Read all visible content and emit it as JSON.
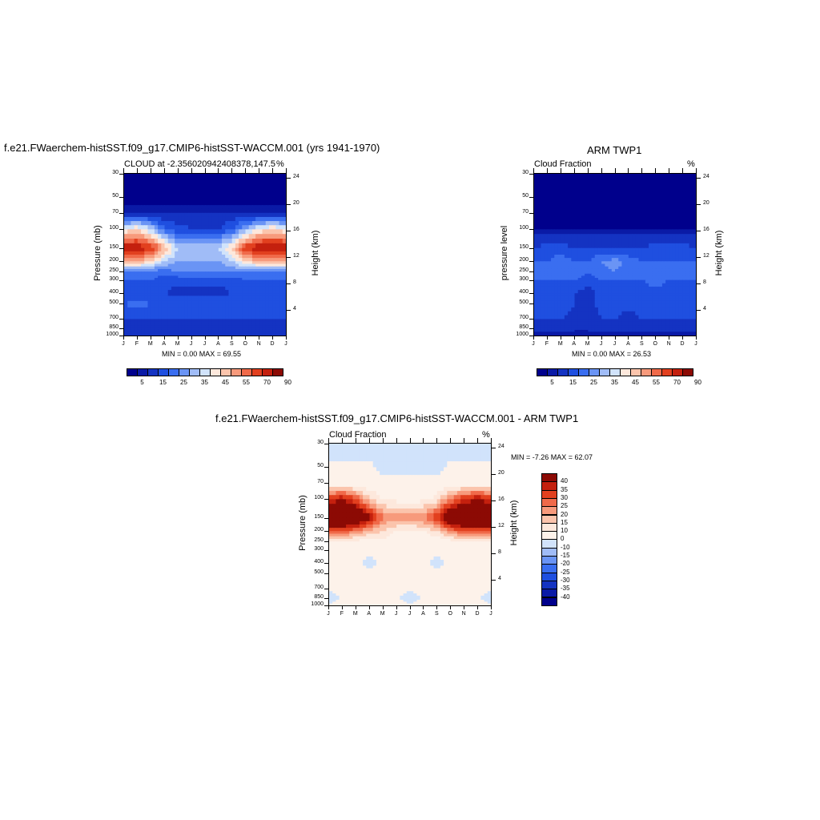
{
  "panel1": {
    "title": "f.e21.FWaerchem-histSST.f09_g17.CMIP6-histSST-WACCM.001 (yrs 1941-1970)",
    "left_label": "CLOUD at -2.356020942408378,147.5",
    "right_unit": "%",
    "ylabel": "Pressure (mb)",
    "y2label": "Height (km)",
    "minmax": "MIN =   0.00 MAX =  69.55"
  },
  "panel2": {
    "title": "ARM TWP1",
    "left_label": "Cloud Fraction",
    "right_unit": "%",
    "ylabel": "pressure level",
    "y2label": "Height (km)",
    "minmax": "MIN =   0.00 MAX =  26.53"
  },
  "panel3": {
    "title": "f.e21.FWaerchem-histSST.f09_g17.CMIP6-histSST-WACCM.001 - ARM TWP1",
    "left_label": "Cloud Fraction",
    "right_unit": "%",
    "ylabel": "Pressure (mb)",
    "y2label": "Height (km)",
    "minmax": "MIN =  -7.26 MAX =  62.07"
  },
  "axes": {
    "pressure_ticks": [
      "30",
      "50",
      "70",
      "100",
      "150",
      "200",
      "250",
      "300",
      "400",
      "500",
      "700",
      "850",
      "1000"
    ],
    "height_ticks": [
      "24",
      "20",
      "16",
      "12",
      "8",
      "4"
    ],
    "month_ticks": [
      "J",
      "F",
      "M",
      "A",
      "M",
      "J",
      "J",
      "A",
      "S",
      "O",
      "N",
      "D",
      "J"
    ]
  },
  "colorbar_top": {
    "labels": [
      "5",
      "15",
      "25",
      "35",
      "45",
      "55",
      "70",
      "90"
    ],
    "colors": [
      "#00008c",
      "#0a1aa6",
      "#1433c2",
      "#1f4fe0",
      "#3a6ef0",
      "#6a94f5",
      "#a0bcf7",
      "#d1e3fb",
      "#fde8dc",
      "#fbc4ac",
      "#f79a7c",
      "#f06a4a",
      "#e2401f",
      "#c4200e",
      "#8c0a04"
    ]
  },
  "colorbar_diff": {
    "labels": [
      "40",
      "35",
      "30",
      "25",
      "20",
      "15",
      "10",
      "0",
      "-10",
      "-15",
      "-20",
      "-25",
      "-30",
      "-35",
      "-40"
    ],
    "colors": [
      "#8c0a04",
      "#c4200e",
      "#e2401f",
      "#f06a4a",
      "#f79a7c",
      "#fbc4ac",
      "#fde8dc",
      "#fdf2ea",
      "#d1e3fb",
      "#a0bcf7",
      "#6a94f5",
      "#3a6ef0",
      "#1f4fe0",
      "#1433c2",
      "#0a1aa6",
      "#00008c"
    ]
  },
  "chart_data": [
    {
      "type": "heatmap",
      "title": "f.e21.FWaerchem-histSST.f09_g17.CMIP6-histSST-WACCM.001 (yrs 1941-1970)",
      "xlabel": "",
      "ylabel": "Pressure (mb)",
      "x": [
        "J",
        "F",
        "M",
        "A",
        "M",
        "J",
        "J",
        "A",
        "S",
        "O",
        "N",
        "D",
        "J"
      ],
      "y_pressure": [
        30,
        50,
        70,
        100,
        150,
        200,
        250,
        300,
        400,
        500,
        700,
        850,
        1000
      ],
      "values_pct": [
        [
          0,
          0,
          0,
          0,
          0,
          0,
          0,
          0,
          0,
          0,
          0,
          0,
          0
        ],
        [
          0,
          0,
          0,
          0,
          0,
          0,
          0,
          0,
          0,
          0,
          0,
          0,
          0
        ],
        [
          5,
          5,
          5,
          5,
          5,
          5,
          5,
          5,
          5,
          5,
          5,
          5,
          5
        ],
        [
          35,
          40,
          30,
          15,
          12,
          10,
          10,
          10,
          15,
          25,
          35,
          40,
          35
        ],
        [
          65,
          65,
          60,
          45,
          30,
          28,
          28,
          30,
          40,
          60,
          65,
          68,
          65
        ],
        [
          45,
          45,
          40,
          30,
          25,
          25,
          25,
          25,
          30,
          40,
          45,
          45,
          45
        ],
        [
          20,
          20,
          18,
          18,
          20,
          20,
          20,
          20,
          20,
          20,
          20,
          20,
          20
        ],
        [
          15,
          15,
          15,
          12,
          12,
          12,
          12,
          12,
          12,
          15,
          15,
          15,
          15
        ],
        [
          10,
          10,
          12,
          10,
          8,
          8,
          8,
          8,
          10,
          10,
          10,
          10,
          10
        ],
        [
          15,
          18,
          15,
          15,
          15,
          15,
          15,
          15,
          15,
          15,
          15,
          15,
          15
        ],
        [
          10,
          10,
          10,
          10,
          10,
          10,
          10,
          10,
          10,
          10,
          10,
          10,
          10
        ],
        [
          8,
          8,
          8,
          8,
          8,
          8,
          8,
          8,
          8,
          8,
          8,
          8,
          8
        ],
        [
          5,
          5,
          5,
          5,
          5,
          5,
          5,
          5,
          5,
          5,
          5,
          5,
          5
        ]
      ],
      "min": 0.0,
      "max": 69.55
    },
    {
      "type": "heatmap",
      "title": "ARM TWP1",
      "xlabel": "",
      "ylabel": "pressure level",
      "x": [
        "J",
        "F",
        "M",
        "A",
        "M",
        "J",
        "J",
        "A",
        "S",
        "O",
        "N",
        "D",
        "J"
      ],
      "y_pressure": [
        30,
        50,
        70,
        100,
        150,
        200,
        250,
        300,
        400,
        500,
        700,
        850,
        1000
      ],
      "values_pct": [
        [
          0,
          0,
          0,
          0,
          0,
          0,
          0,
          0,
          0,
          0,
          0,
          0,
          0
        ],
        [
          0,
          0,
          0,
          0,
          0,
          0,
          0,
          0,
          0,
          0,
          0,
          0,
          0
        ],
        [
          0,
          0,
          0,
          0,
          0,
          0,
          0,
          0,
          0,
          0,
          0,
          0,
          0
        ],
        [
          2,
          2,
          2,
          2,
          2,
          2,
          2,
          2,
          2,
          2,
          2,
          2,
          2
        ],
        [
          10,
          12,
          12,
          10,
          10,
          10,
          10,
          10,
          10,
          12,
          12,
          12,
          10
        ],
        [
          15,
          15,
          18,
          15,
          15,
          20,
          22,
          18,
          15,
          15,
          15,
          15,
          15
        ],
        [
          18,
          18,
          18,
          18,
          15,
          18,
          20,
          18,
          18,
          20,
          18,
          18,
          18
        ],
        [
          15,
          15,
          15,
          15,
          12,
          15,
          15,
          15,
          15,
          18,
          15,
          15,
          15
        ],
        [
          12,
          12,
          12,
          10,
          8,
          12,
          12,
          12,
          12,
          12,
          12,
          12,
          12
        ],
        [
          12,
          12,
          12,
          10,
          8,
          12,
          12,
          12,
          12,
          12,
          12,
          12,
          12
        ],
        [
          10,
          10,
          10,
          8,
          6,
          10,
          10,
          8,
          10,
          10,
          10,
          10,
          10
        ],
        [
          8,
          8,
          8,
          6,
          6,
          8,
          8,
          8,
          8,
          8,
          8,
          8,
          8
        ],
        [
          3,
          3,
          3,
          3,
          3,
          3,
          3,
          3,
          3,
          3,
          3,
          3,
          3
        ]
      ],
      "min": 0.0,
      "max": 26.53
    },
    {
      "type": "heatmap",
      "title": "f.e21.FWaerchem-histSST.f09_g17.CMIP6-histSST-WACCM.001 - ARM TWP1",
      "xlabel": "",
      "ylabel": "Pressure (mb)",
      "x": [
        "J",
        "F",
        "M",
        "A",
        "M",
        "J",
        "J",
        "A",
        "S",
        "O",
        "N",
        "D",
        "J"
      ],
      "y_pressure": [
        30,
        50,
        70,
        100,
        150,
        200,
        250,
        300,
        400,
        500,
        700,
        850,
        1000
      ],
      "values_pct": [
        [
          -5,
          -5,
          -5,
          -5,
          -5,
          -5,
          -5,
          -5,
          -5,
          -5,
          -5,
          -5,
          -5
        ],
        [
          2,
          2,
          2,
          2,
          -5,
          -5,
          -5,
          -5,
          -5,
          2,
          2,
          2,
          2
        ],
        [
          5,
          5,
          5,
          5,
          5,
          5,
          5,
          5,
          5,
          5,
          5,
          5,
          5
        ],
        [
          35,
          40,
          30,
          15,
          10,
          8,
          8,
          8,
          12,
          25,
          35,
          40,
          35
        ],
        [
          60,
          60,
          55,
          42,
          25,
          22,
          22,
          25,
          35,
          55,
          60,
          62,
          60
        ],
        [
          30,
          30,
          25,
          18,
          15,
          10,
          10,
          10,
          15,
          25,
          30,
          30,
          30
        ],
        [
          8,
          8,
          8,
          8,
          8,
          5,
          5,
          5,
          5,
          8,
          8,
          8,
          8
        ],
        [
          5,
          5,
          5,
          5,
          5,
          5,
          5,
          5,
          5,
          5,
          5,
          5,
          5
        ],
        [
          2,
          2,
          2,
          -5,
          2,
          2,
          2,
          2,
          -5,
          2,
          2,
          2,
          2
        ],
        [
          5,
          5,
          5,
          5,
          5,
          5,
          5,
          5,
          5,
          5,
          5,
          5,
          5
        ],
        [
          2,
          2,
          2,
          2,
          2,
          2,
          2,
          2,
          2,
          2,
          2,
          2,
          2
        ],
        [
          -5,
          2,
          2,
          2,
          2,
          2,
          -5,
          2,
          2,
          2,
          2,
          2,
          -5
        ],
        [
          2,
          2,
          2,
          2,
          2,
          2,
          2,
          2,
          2,
          2,
          2,
          2,
          2
        ]
      ],
      "min": -7.26,
      "max": 62.07
    }
  ]
}
